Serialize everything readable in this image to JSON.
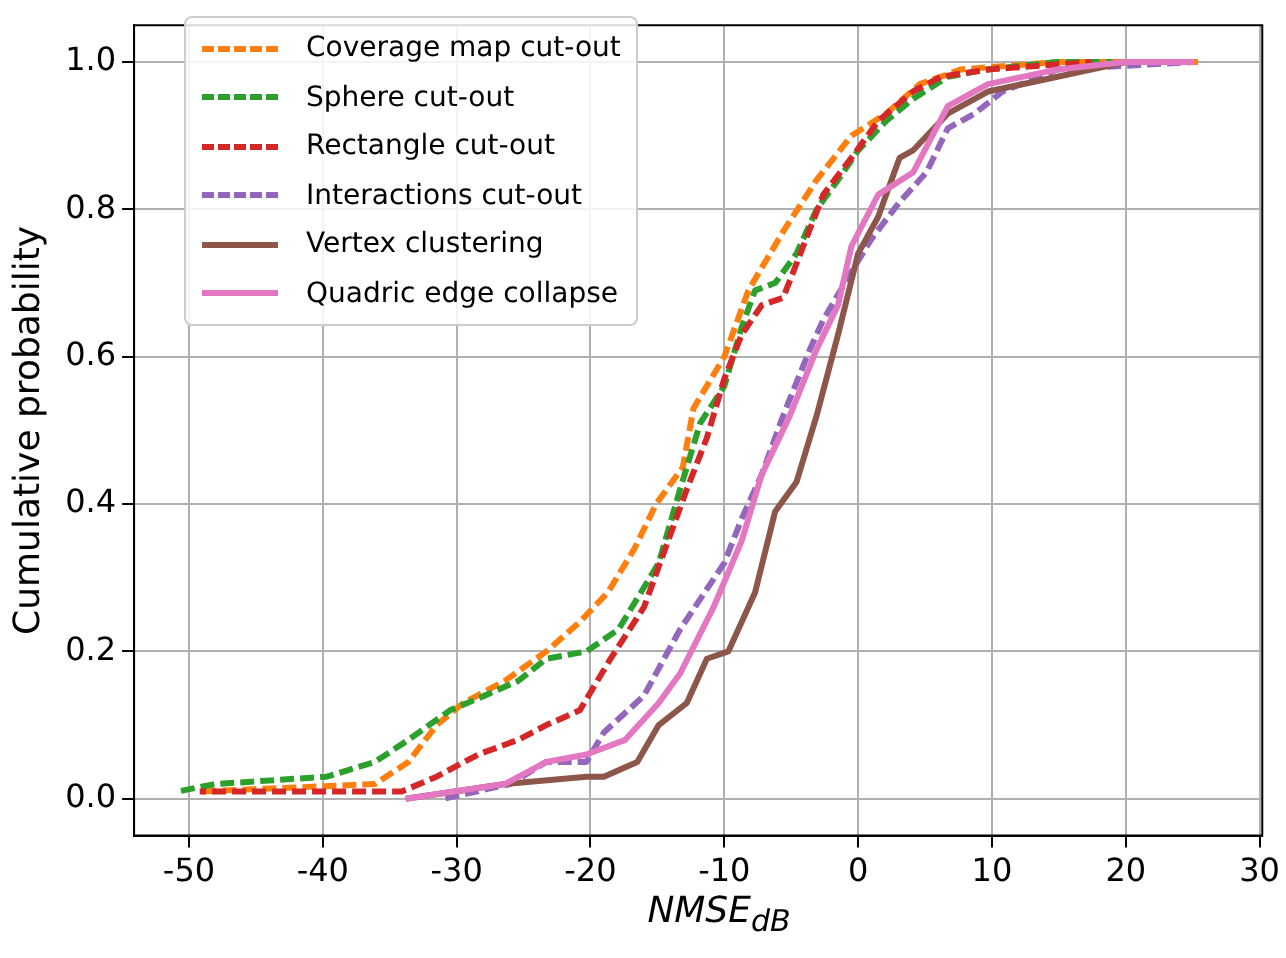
{
  "chart_data": {
    "type": "line",
    "xlabel": "NMSE$_{dB}$",
    "ylabel": "Cumulative probability",
    "xlim": [
      -54.1,
      30.2
    ],
    "xticks": [
      -50,
      -40,
      -30,
      -20,
      -10,
      0,
      10,
      20,
      30
    ],
    "ylim": [
      -0.05,
      1.05
    ],
    "yticks": [
      {
        "value": 0,
        "label": "0.0"
      },
      {
        "value": 0.2,
        "label": "0.2"
      },
      {
        "value": 0.4,
        "label": "0.4"
      },
      {
        "value": 0.6,
        "label": "0.6"
      },
      {
        "value": 0.8,
        "label": "0.8"
      },
      {
        "value": 1,
        "label": "1.0"
      }
    ],
    "grid": true,
    "legend": "top left",
    "marker": "none",
    "series": [
      {
        "name": "Coverage map cut-out",
        "color": "#ff7f0e",
        "line_style": "dashed",
        "x": [
          -49,
          -36.1,
          -33.6,
          -31.5,
          -29.5,
          -26.4,
          -23.3,
          -20.8,
          -18.7,
          -16.7,
          -15.1,
          -13.1,
          -12.3,
          -10,
          -8.2,
          -5.6,
          -3.1,
          -0.5,
          2.1,
          4.6,
          7.7,
          14.9,
          25.4
        ],
        "values": [
          0.01,
          0.02,
          0.05,
          0.1,
          0.13,
          0.16,
          0.2,
          0.24,
          0.28,
          0.34,
          0.4,
          0.45,
          0.53,
          0.6,
          0.69,
          0.77,
          0.84,
          0.9,
          0.93,
          0.97,
          0.99,
          1.0,
          1.0
        ]
      },
      {
        "name": "Sphere cut-out",
        "color": "#2ca02c",
        "line_style": "dashed",
        "x": [
          -50.8,
          -48,
          -39.7,
          -36.1,
          -33.6,
          -30.5,
          -27.9,
          -25.4,
          -23.3,
          -20.3,
          -17.9,
          -14.9,
          -13.3,
          -11.8,
          -10,
          -8.7,
          -7.7,
          -6.2,
          -4.6,
          -3.1,
          -1.5,
          0,
          2.1,
          4.1,
          6.7,
          9.7,
          14.9,
          19
        ],
        "values": [
          0.01,
          0.02,
          0.03,
          0.05,
          0.08,
          0.12,
          0.14,
          0.16,
          0.19,
          0.2,
          0.23,
          0.32,
          0.42,
          0.51,
          0.56,
          0.64,
          0.69,
          0.7,
          0.74,
          0.8,
          0.84,
          0.88,
          0.92,
          0.95,
          0.98,
          0.99,
          1.0,
          1.0
        ]
      },
      {
        "name": "Rectangle cut-out",
        "color": "#d62728",
        "line_style": "dashed",
        "x": [
          -49.2,
          -34.1,
          -31.5,
          -28.4,
          -25.4,
          -23.3,
          -20.8,
          -18.5,
          -16,
          -14.4,
          -12.8,
          -11.3,
          -10,
          -8.7,
          -7.2,
          -5.6,
          -4.1,
          -2.6,
          -0.5,
          1.5,
          4.1,
          6.2,
          9.7,
          17.5
        ],
        "values": [
          0.01,
          0.01,
          0.03,
          0.06,
          0.08,
          0.1,
          0.12,
          0.19,
          0.26,
          0.34,
          0.42,
          0.49,
          0.57,
          0.63,
          0.67,
          0.68,
          0.75,
          0.82,
          0.87,
          0.92,
          0.96,
          0.98,
          0.99,
          1.0
        ]
      },
      {
        "name": "Interactions cut-out",
        "color": "#9467bd",
        "line_style": "dashed",
        "x": [
          -31,
          -26,
          -23.3,
          -20.3,
          -19,
          -16,
          -13.3,
          -10,
          -8.7,
          -7.2,
          -5.6,
          -3.6,
          -2.6,
          -1,
          1,
          3.1,
          5.1,
          6.7,
          8.7,
          10.8,
          14.9,
          25.1
        ],
        "values": [
          0.0,
          0.02,
          0.05,
          0.05,
          0.09,
          0.14,
          0.23,
          0.32,
          0.38,
          0.44,
          0.52,
          0.61,
          0.65,
          0.7,
          0.76,
          0.81,
          0.85,
          0.91,
          0.93,
          0.96,
          0.99,
          1.0
        ]
      },
      {
        "name": "Vertex clustering",
        "color": "#8c564b",
        "line_style": "solid",
        "x": [
          -33.8,
          -26.4,
          -20.3,
          -19,
          -16.5,
          -14.9,
          -12.8,
          -11.3,
          -9.7,
          -7.7,
          -6.2,
          -4.6,
          -3.1,
          -1.5,
          0,
          1.5,
          3.1,
          4.1,
          6.7,
          9.7,
          14.9,
          20
        ],
        "values": [
          0.0,
          0.02,
          0.03,
          0.03,
          0.05,
          0.1,
          0.13,
          0.19,
          0.2,
          0.28,
          0.39,
          0.43,
          0.52,
          0.63,
          0.74,
          0.79,
          0.87,
          0.88,
          0.93,
          0.96,
          0.98,
          1.0
        ]
      },
      {
        "name": "Quadric edge collapse",
        "color": "#e377c2",
        "line_style": "solid",
        "x": [
          -33.8,
          -26.4,
          -23.3,
          -20.3,
          -17.4,
          -14.9,
          -13.3,
          -10.8,
          -8.7,
          -7.2,
          -5.1,
          -3.1,
          -1.5,
          -0.5,
          1.5,
          4.1,
          6.7,
          9.7,
          14.9,
          20,
          25.1
        ],
        "values": [
          0.0,
          0.02,
          0.05,
          0.06,
          0.08,
          0.13,
          0.17,
          0.26,
          0.35,
          0.44,
          0.52,
          0.61,
          0.67,
          0.75,
          0.82,
          0.85,
          0.94,
          0.97,
          0.99,
          1.0,
          1.0
        ]
      }
    ]
  }
}
